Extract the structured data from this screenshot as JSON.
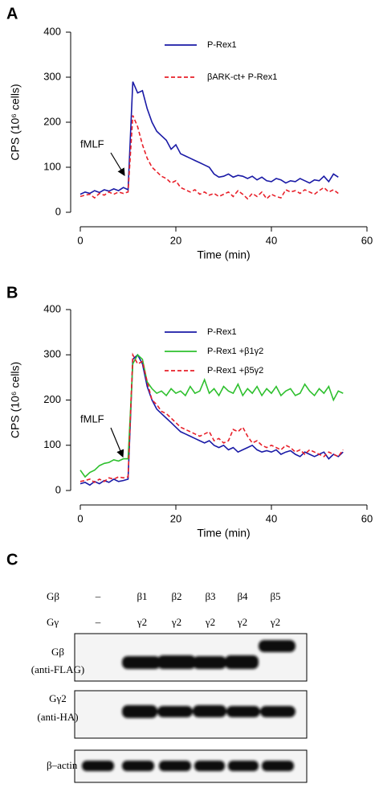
{
  "chart_data": [
    {
      "type": "line",
      "label": "A",
      "ylabel": "CPS (10⁶ cells)",
      "xlabel": "Time (min)",
      "annotation": "fMLF",
      "xlim": [
        0,
        60
      ],
      "ylim": [
        0,
        400
      ],
      "xticks": [
        0,
        20,
        40,
        60
      ],
      "yticks": [
        0,
        100,
        200,
        300,
        400
      ],
      "x": [
        0,
        1,
        2,
        3,
        4,
        5,
        6,
        7,
        8,
        9,
        10,
        11,
        12,
        13,
        14,
        15,
        16,
        17,
        18,
        19,
        20,
        21,
        22,
        23,
        24,
        25,
        26,
        27,
        28,
        29,
        30,
        31,
        32,
        33,
        34,
        35,
        36,
        37,
        38,
        39,
        40,
        41,
        42,
        43,
        44,
        45,
        46,
        47,
        48,
        49,
        50,
        51,
        52,
        53,
        54
      ],
      "series": [
        {
          "name": "P-Rex1",
          "color": "#1a1aa6",
          "linestyle": "solid",
          "values": [
            40,
            45,
            42,
            48,
            44,
            50,
            47,
            52,
            48,
            55,
            50,
            290,
            265,
            270,
            230,
            200,
            180,
            170,
            160,
            140,
            150,
            130,
            125,
            120,
            115,
            110,
            105,
            100,
            85,
            78,
            80,
            85,
            78,
            82,
            80,
            75,
            80,
            72,
            78,
            70,
            68,
            75,
            72,
            65,
            70,
            68,
            75,
            70,
            65,
            72,
            70,
            80,
            68,
            85,
            78
          ]
        },
        {
          "name": "βARK-ct+ P-Rex1",
          "color": "#e8202a",
          "linestyle": "dashed",
          "values": [
            35,
            38,
            40,
            32,
            42,
            38,
            45,
            40,
            45,
            42,
            45,
            215,
            190,
            150,
            120,
            100,
            90,
            80,
            75,
            65,
            70,
            55,
            50,
            45,
            50,
            40,
            45,
            38,
            42,
            35,
            40,
            45,
            35,
            48,
            40,
            30,
            42,
            35,
            45,
            30,
            40,
            35,
            32,
            50,
            45,
            48,
            42,
            50,
            45,
            40,
            48,
            55,
            45,
            50,
            42
          ]
        }
      ]
    },
    {
      "type": "line",
      "label": "B",
      "ylabel": "CPS (10⁶ cells)",
      "xlabel": "Time (min)",
      "annotation": "fMLF",
      "xlim": [
        0,
        60
      ],
      "ylim": [
        0,
        400
      ],
      "xticks": [
        0,
        20,
        40,
        60
      ],
      "yticks": [
        0,
        100,
        200,
        300,
        400
      ],
      "x": [
        0,
        1,
        2,
        3,
        4,
        5,
        6,
        7,
        8,
        9,
        10,
        11,
        12,
        13,
        14,
        15,
        16,
        17,
        18,
        19,
        20,
        21,
        22,
        23,
        24,
        25,
        26,
        27,
        28,
        29,
        30,
        31,
        32,
        33,
        34,
        35,
        36,
        37,
        38,
        39,
        40,
        41,
        42,
        43,
        44,
        45,
        46,
        47,
        48,
        49,
        50,
        51,
        52,
        53,
        54,
        55
      ],
      "series": [
        {
          "name": "P-Rex1",
          "color": "#1a1aa6",
          "linestyle": "solid",
          "values": [
            15,
            18,
            12,
            20,
            15,
            22,
            18,
            25,
            20,
            22,
            25,
            290,
            300,
            280,
            230,
            200,
            180,
            170,
            160,
            150,
            140,
            130,
            125,
            120,
            115,
            110,
            105,
            110,
            100,
            95,
            100,
            90,
            95,
            85,
            90,
            95,
            100,
            90,
            85,
            88,
            85,
            90,
            80,
            85,
            88,
            80,
            75,
            85,
            80,
            75,
            80,
            85,
            70,
            80,
            75,
            85
          ]
        },
        {
          "name": "P-Rex1 +β1γ2",
          "color": "#2ec02e",
          "linestyle": "solid",
          "values": [
            45,
            30,
            40,
            45,
            55,
            60,
            62,
            68,
            65,
            70,
            70,
            280,
            300,
            290,
            240,
            225,
            215,
            220,
            210,
            225,
            215,
            220,
            210,
            230,
            215,
            220,
            245,
            215,
            225,
            210,
            230,
            220,
            215,
            235,
            210,
            225,
            215,
            230,
            210,
            225,
            215,
            230,
            210,
            220,
            225,
            210,
            215,
            235,
            220,
            210,
            225,
            215,
            230,
            200,
            220,
            215
          ]
        },
        {
          "name": "P-Rex1 +β5γ2",
          "color": "#e8202a",
          "linestyle": "dashed",
          "values": [
            20,
            22,
            25,
            18,
            25,
            20,
            28,
            25,
            30,
            28,
            30,
            300,
            280,
            285,
            240,
            200,
            190,
            175,
            170,
            160,
            150,
            140,
            135,
            130,
            125,
            120,
            125,
            130,
            110,
            115,
            105,
            110,
            135,
            130,
            140,
            120,
            105,
            110,
            100,
            95,
            100,
            95,
            90,
            100,
            95,
            85,
            90,
            80,
            90,
            85,
            80,
            75,
            85,
            80,
            75,
            90
          ]
        }
      ]
    }
  ],
  "blot": {
    "label": "C",
    "header_rows": [
      {
        "name": "Gβ",
        "values": [
          "–",
          "β1",
          "β2",
          "β3",
          "β4",
          "β5"
        ]
      },
      {
        "name": "Gγ",
        "values": [
          "–",
          "γ2",
          "γ2",
          "γ2",
          "γ2",
          "γ2"
        ]
      }
    ],
    "panels": [
      {
        "label_lines": [
          "Gβ",
          "(anti-FLAG)"
        ]
      },
      {
        "label_lines": [
          "Gγ2",
          "(anti-HA)"
        ]
      },
      {
        "label_lines": [
          "β–actin"
        ]
      }
    ]
  }
}
